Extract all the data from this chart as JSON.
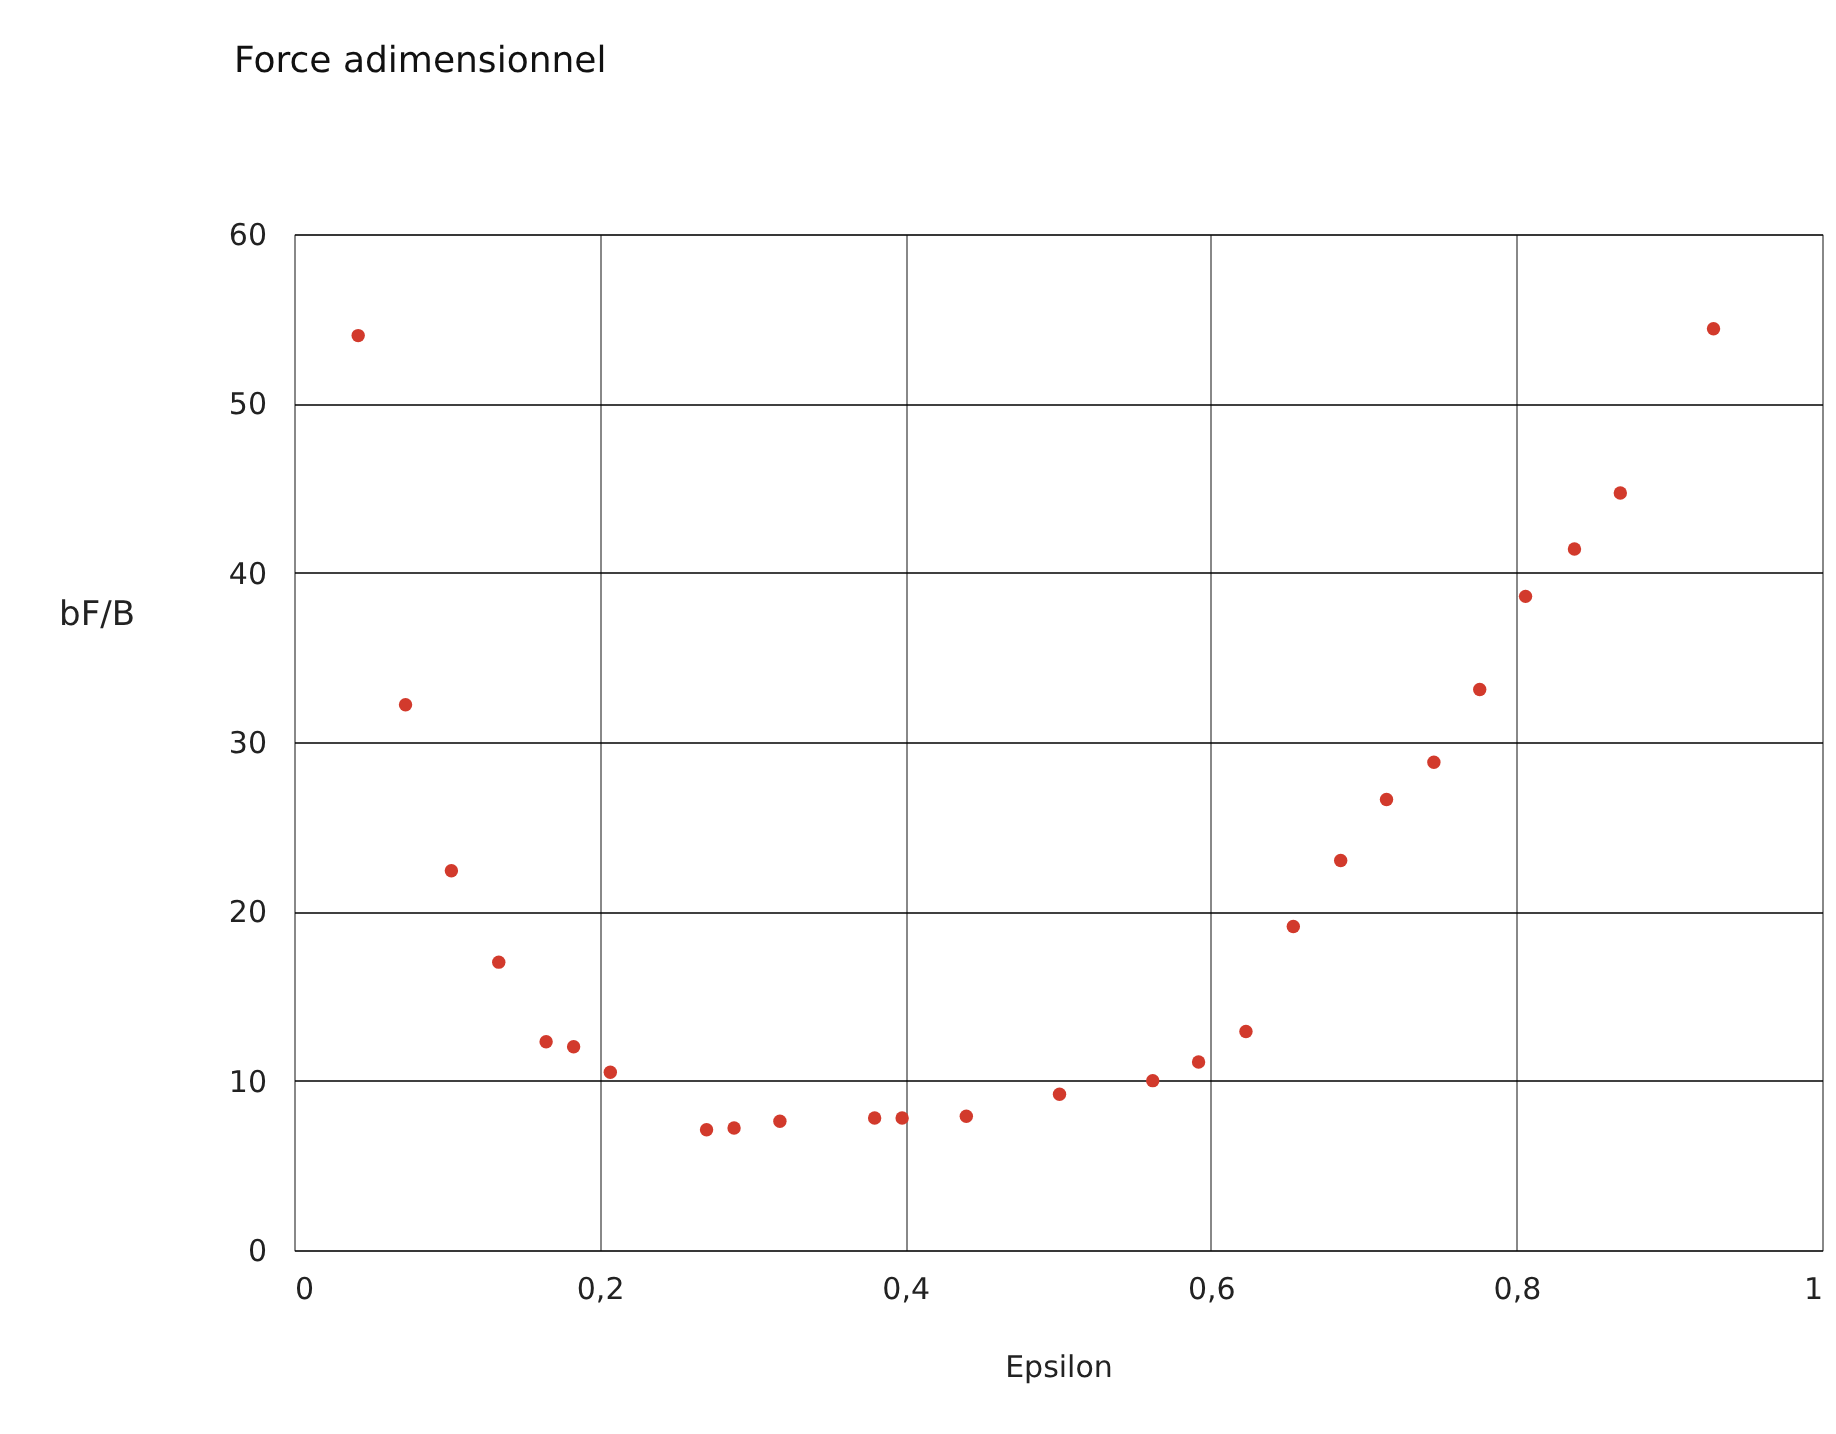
{
  "chart_data": {
    "type": "scatter",
    "title": "Force adimensionnel",
    "xlabel": "Epsilon",
    "ylabel": "bF/B",
    "x": [
      0.042,
      0.073,
      0.103,
      0.134,
      0.165,
      0.183,
      0.207,
      0.27,
      0.288,
      0.318,
      0.38,
      0.398,
      0.44,
      0.501,
      0.562,
      0.592,
      0.623,
      0.654,
      0.685,
      0.715,
      0.746,
      0.776,
      0.806,
      0.838,
      0.868,
      0.929
    ],
    "series": [
      {
        "color": "#d23a2c",
        "values": [
          54.0,
          32.2,
          22.4,
          17.0,
          12.3,
          12.0,
          10.5,
          7.1,
          7.2,
          7.6,
          7.8,
          7.8,
          7.9,
          9.2,
          10.0,
          11.1,
          12.9,
          19.1,
          23.0,
          26.6,
          28.8,
          33.1,
          38.6,
          41.4,
          44.7,
          54.4
        ]
      }
    ],
    "xlim": [
      0,
      1
    ],
    "xticks": [
      0,
      {
        "value": 0.2,
        "label": "0,2"
      },
      {
        "value": 0.4,
        "label": "0,4"
      },
      {
        "value": 0.6,
        "label": "0,6"
      },
      {
        "value": 0.8,
        "label": "0,8"
      },
      1
    ],
    "ylim": [
      0,
      60
    ],
    "yticks": [
      0,
      10,
      20,
      30,
      40,
      50,
      60
    ],
    "grid": true,
    "marker": "circle",
    "legend": false
  }
}
